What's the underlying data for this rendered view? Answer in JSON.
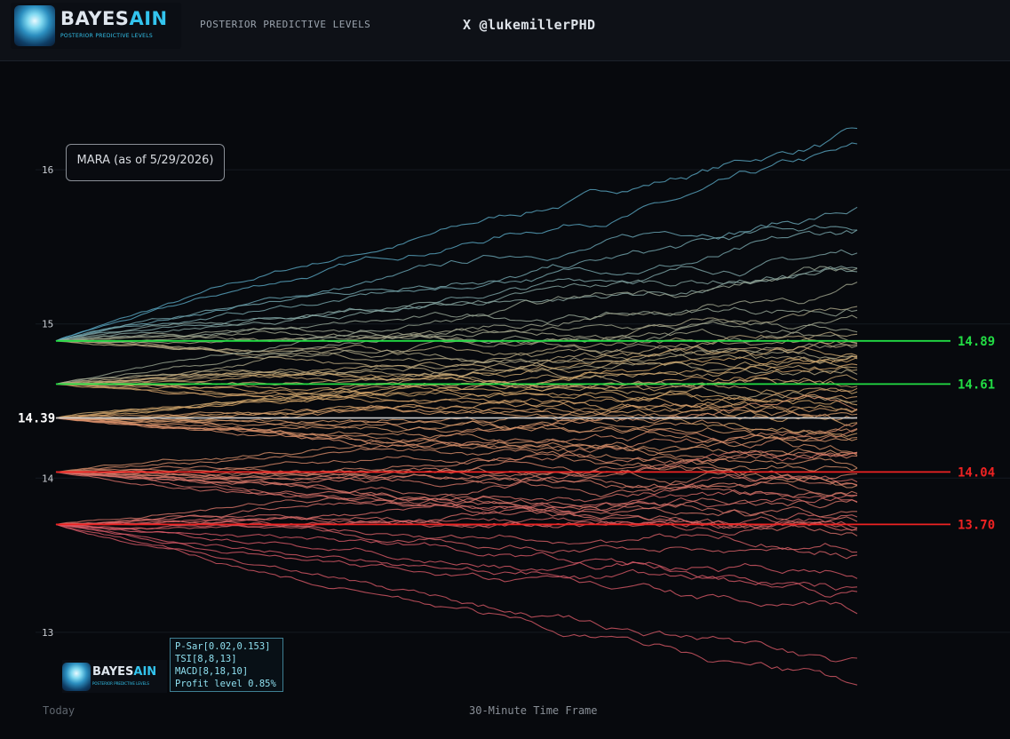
{
  "header": {
    "logo_title": "BAYES",
    "logo_title_ai": "AIN",
    "logo_subtitle": "POSTERIOR PREDICTIVE LEVELS",
    "title": "POSTERIOR PREDICTIVE LEVELS",
    "handle": "X @lukemillerPHD"
  },
  "ticker_label": "MARA (as of 5/29/2026)",
  "params": [
    "P-Sar[0.02,0.153]",
    "TSI[8,8,13]",
    "MACD[8,18,10]",
    "Profit level 0.85%"
  ],
  "mini_logo": {
    "title": "BAYES",
    "title_ai": "AIN",
    "subtitle": "POSTERIOR PREDICTIVE LEVELS"
  },
  "x_axis": {
    "left_label": "Today",
    "center_label": "30-Minute Time Frame"
  },
  "chart_data": {
    "type": "line",
    "title": "",
    "ylim": [
      12.55,
      16.45
    ],
    "yticks": [
      13,
      14,
      15,
      16
    ],
    "current_price": {
      "value": 14.39,
      "label": "14.39",
      "color": "#ffffff"
    },
    "levels": [
      {
        "value": 14.89,
        "label": "14.89",
        "color": "#22dd44"
      },
      {
        "value": 14.61,
        "label": "14.61",
        "color": "#22dd44"
      },
      {
        "value": 14.04,
        "label": "14.04",
        "color": "#ee2222"
      },
      {
        "value": 13.7,
        "label": "13.70",
        "color": "#ee2222"
      }
    ],
    "fan_origins": [
      14.89,
      14.61,
      14.39,
      14.04,
      13.7
    ],
    "path_endpoints": [
      [
        16.23,
        16.06,
        15.77,
        15.62,
        15.56,
        15.48,
        15.35,
        15.3,
        15.12,
        15.0,
        14.95,
        14.9,
        14.82,
        14.78,
        14.72,
        14.66,
        14.6
      ],
      [
        15.35,
        15.25,
        15.1,
        14.95,
        14.88,
        14.8,
        14.76,
        14.7,
        14.65,
        14.6,
        14.55,
        14.5,
        14.45,
        14.4,
        14.35
      ],
      [
        14.86,
        14.78,
        14.72,
        14.66,
        14.58,
        14.52,
        14.47,
        14.42,
        14.38,
        14.33,
        14.28,
        14.24,
        14.2,
        14.15,
        14.1,
        14.05,
        14.0
      ],
      [
        14.4,
        14.32,
        14.25,
        14.18,
        14.12,
        14.06,
        14.0,
        13.95,
        13.9,
        13.85,
        13.8,
        13.75,
        13.7,
        13.65,
        13.6
      ],
      [
        14.1,
        14.0,
        13.9,
        13.84,
        13.78,
        13.72,
        13.66,
        13.62,
        13.58,
        13.4,
        13.33,
        13.28,
        13.05,
        12.78,
        12.66
      ]
    ],
    "colors": {
      "background": "#07090d",
      "high": "#5aa9c4",
      "mid": "#d6a76a",
      "low": "#d95a68"
    }
  }
}
